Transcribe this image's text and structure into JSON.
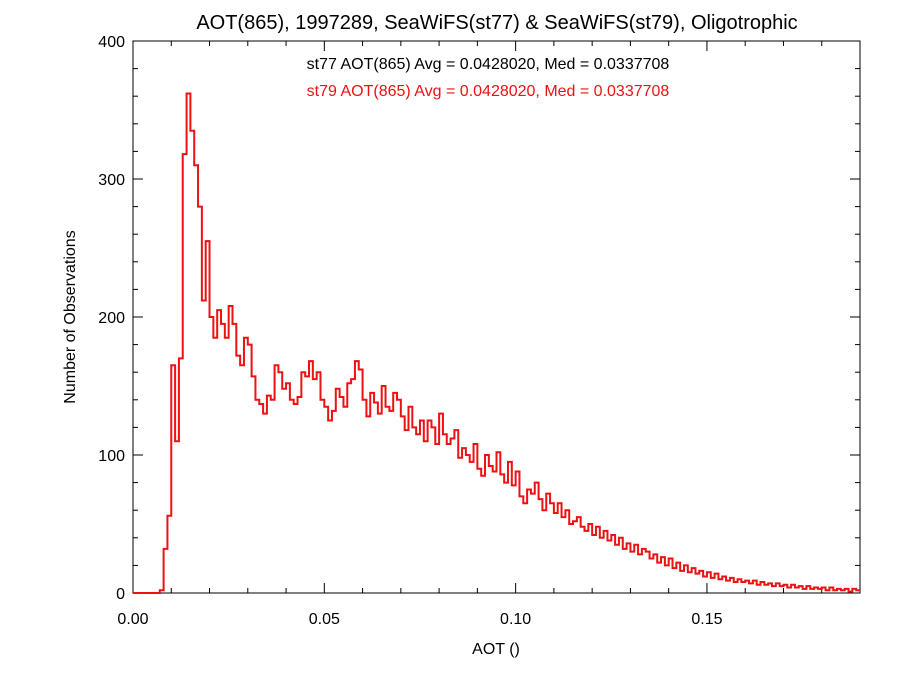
{
  "chart_data": {
    "type": "histogram",
    "title": "AOT(865), 1997289, SeaWiFS(st77) & SeaWiFS(st79), Oligotrophic",
    "xlabel": "AOT ()",
    "ylabel": "Number of Observations",
    "xlim": [
      0.0,
      0.19
    ],
    "ylim": [
      0,
      400
    ],
    "x_ticks": [
      0.0,
      0.05,
      0.1,
      0.15
    ],
    "x_tick_labels": [
      "0.00",
      "0.05",
      "0.10",
      "0.15"
    ],
    "y_ticks": [
      0,
      100,
      200,
      300,
      400
    ],
    "y_tick_labels": [
      "0",
      "100",
      "200",
      "300",
      "400"
    ],
    "bin_width": 0.001,
    "bin_start": 0.0,
    "annotations": [
      {
        "text": "st77 AOT(865) Avg = 0.0428020, Med = 0.0337708",
        "color": "#000000"
      },
      {
        "text": "st79 AOT(865) Avg = 0.0428020, Med = 0.0337708",
        "color": "#ee1111"
      }
    ],
    "series": [
      {
        "color": "#ee1111",
        "values": [
          0,
          0,
          0,
          0,
          0,
          0,
          0,
          2,
          32,
          56,
          165,
          110,
          170,
          318,
          362,
          335,
          310,
          280,
          212,
          255,
          200,
          185,
          205,
          195,
          185,
          208,
          195,
          172,
          165,
          185,
          180,
          157,
          140,
          137,
          130,
          143,
          140,
          165,
          160,
          148,
          152,
          140,
          137,
          142,
          160,
          157,
          168,
          155,
          160,
          140,
          135,
          125,
          132,
          148,
          142,
          135,
          152,
          155,
          168,
          162,
          140,
          128,
          145,
          138,
          130,
          150,
          135,
          132,
          145,
          140,
          128,
          118,
          135,
          120,
          115,
          125,
          110,
          125,
          120,
          108,
          130,
          115,
          108,
          112,
          118,
          98,
          105,
          100,
          95,
          108,
          90,
          85,
          100,
          92,
          88,
          102,
          86,
          80,
          95,
          78,
          88,
          70,
          65,
          75,
          72,
          80,
          68,
          60,
          72,
          65,
          58,
          65,
          55,
          60,
          50,
          52,
          55,
          48,
          45,
          50,
          42,
          48,
          40,
          45,
          38,
          42,
          35,
          40,
          32,
          36,
          30,
          35,
          28,
          32,
          30,
          25,
          28,
          22,
          26,
          20,
          25,
          18,
          22,
          16,
          20,
          15,
          18,
          14,
          16,
          12,
          15,
          11,
          14,
          10,
          12,
          9,
          11,
          8,
          10,
          8,
          9,
          7,
          9,
          6,
          8,
          6,
          7,
          5,
          7,
          5,
          6,
          4,
          6,
          4,
          5,
          3,
          5,
          3,
          4,
          3,
          4,
          2,
          4,
          2,
          3,
          2,
          3,
          1,
          3,
          2
        ]
      }
    ]
  }
}
